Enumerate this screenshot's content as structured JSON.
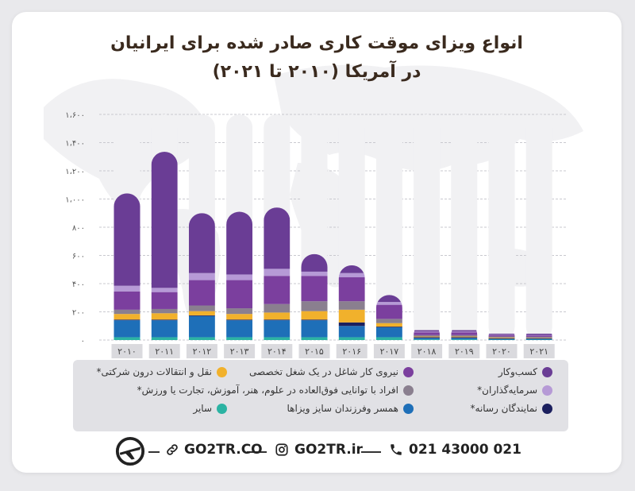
{
  "title_line1": "انواع ویزای موقت کاری صادر شده برای ایرانیان",
  "title_line2": "در آمریکا (۲۰۱۰ تا ۲۰۲۱)",
  "chart_data": {
    "type": "bar",
    "stacked": true,
    "categories": [
      "۲۰۱۰",
      "۲۰۱۱",
      "۲۰۱۲",
      "۲۰۱۳",
      "۲۰۱۴",
      "۲۰۱۵",
      "۲۰۱۶",
      "۲۰۱۷",
      "۲۰۱۸",
      "۲۰۱۹",
      "۲۰۲۰",
      "۲۰۲۱"
    ],
    "y_ticks": [
      "۰",
      "۲۰۰",
      "۴۰۰",
      "۶۰۰",
      "۸۰۰",
      "۱،۰۰۰",
      "۱،۲۰۰",
      "۱،۴۰۰",
      "۱،۶۰۰"
    ],
    "ylim": [
      0,
      1600
    ],
    "grid": true,
    "series": [
      {
        "name": "سایر",
        "color": "#2bb3a3",
        "values": [
          20,
          20,
          20,
          20,
          20,
          20,
          20,
          20,
          5,
          5,
          3,
          3
        ]
      },
      {
        "name": "همسر وفرزندان سایز ویزاها",
        "color": "#1e6fb8",
        "values": [
          120,
          120,
          150,
          120,
          120,
          120,
          80,
          70,
          10,
          10,
          5,
          5
        ]
      },
      {
        "name": "نمایندگان رسانه*",
        "color": "#1b1f5e",
        "values": [
          5,
          5,
          5,
          5,
          5,
          5,
          25,
          5,
          5,
          5,
          5,
          5
        ]
      },
      {
        "name": "نقل و انتقالات درون شرکتی*",
        "color": "#f1b12c",
        "values": [
          40,
          45,
          30,
          40,
          50,
          60,
          90,
          25,
          5,
          5,
          5,
          3
        ]
      },
      {
        "name": "افراد با توانایی فوق‌العاده در علوم، هنر، آموزش، تجارت یا ورزش*",
        "color": "#8a7f8f",
        "values": [
          30,
          30,
          40,
          40,
          60,
          70,
          60,
          30,
          10,
          10,
          7,
          7
        ]
      },
      {
        "name": "نیروی کار شاغل در یک شغل تخصصی",
        "color": "#7b3f9e",
        "values": [
          130,
          120,
          180,
          200,
          200,
          180,
          170,
          100,
          20,
          20,
          10,
          10
        ]
      },
      {
        "name": "سرمایه‌گذاران*",
        "color": "#b69ad6",
        "values": [
          40,
          30,
          50,
          40,
          50,
          30,
          30,
          20,
          5,
          5,
          3,
          3
        ]
      },
      {
        "name": "کسب‌وکار",
        "color": "#6a3d95",
        "values": [
          655,
          965,
          425,
          445,
          435,
          125,
          55,
          50,
          10,
          10,
          7,
          9
        ]
      }
    ]
  },
  "legend": [
    {
      "label": "کسب‌وکار",
      "color": "#6a3d95"
    },
    {
      "label": "نیروی کار شاغل در یک شغل تخصصی",
      "color": "#7b3f9e"
    },
    {
      "label": "نقل و انتقالات درون شرکتی*",
      "color": "#f1b12c"
    },
    {
      "label": "سرمایه‌گذاران*",
      "color": "#b69ad6"
    },
    {
      "label": "افراد با توانایی فوق‌العاده در علوم، هنر، آموزش، تجارت یا ورزش*",
      "color": "#8a7f8f"
    },
    {
      "label": "نمایندگان رسانه*",
      "color": "#1b1f5e"
    },
    {
      "label": "همسر وفرزندان سایز ویزاها",
      "color": "#1e6fb8"
    },
    {
      "label": "سایر",
      "color": "#2bb3a3"
    }
  ],
  "footer": {
    "phone": "021 43000 021",
    "instagram": "GO2TR.ir",
    "website": "GO2TR.CO"
  }
}
